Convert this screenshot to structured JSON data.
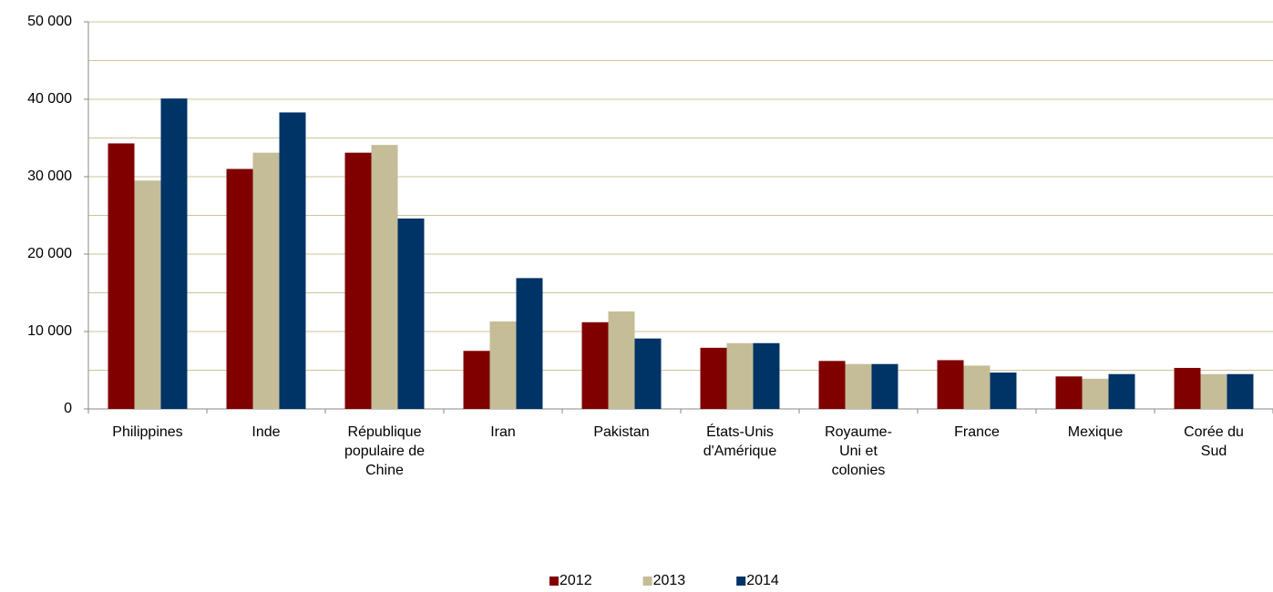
{
  "chart_data": {
    "type": "bar",
    "categories": [
      "Philippines",
      "Inde",
      "République populaire de Chine",
      "Iran",
      "Pakistan",
      "États-Unis d'Amérique",
      "Royaume-Uni et colonies",
      "France",
      "Mexique",
      "Corée du Sud"
    ],
    "series": [
      {
        "name": "2012",
        "color": "#800000",
        "values": [
          34300,
          31000,
          33100,
          7500,
          11200,
          7900,
          6200,
          6300,
          4200,
          5300
        ]
      },
      {
        "name": "2013",
        "color": "#c4bd97",
        "values": [
          29500,
          33100,
          34100,
          11300,
          12600,
          8500,
          5800,
          5600,
          3900,
          4500
        ]
      },
      {
        "name": "2014",
        "color": "#003366",
        "values": [
          40100,
          38300,
          24600,
          16900,
          9100,
          8500,
          5800,
          4700,
          4500,
          4500
        ]
      }
    ],
    "ylim": [
      0,
      50000
    ],
    "yticks": [
      0,
      {
        "value": 10000,
        "label": "10 000"
      },
      {
        "value": 20000,
        "label": "20 000"
      },
      {
        "value": 30000,
        "label": "30 000"
      },
      {
        "value": 40000,
        "label": "40 000"
      },
      {
        "value": 50000,
        "label": "50 000"
      }
    ],
    "minor_yticks": [
      5000,
      15000,
      25000,
      35000,
      45000
    ],
    "grid": true,
    "legend": "bottom"
  }
}
